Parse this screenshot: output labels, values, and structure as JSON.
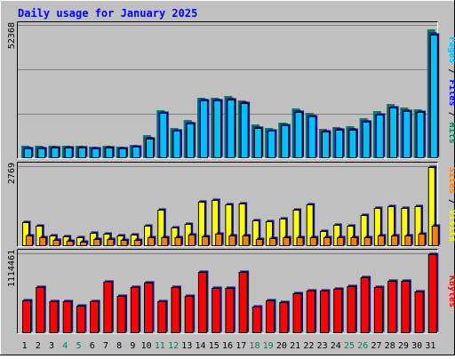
{
  "chart_data": [
    {
      "type": "bar",
      "title": "Daily usage for January 2025",
      "ylabel_parts": [
        "Pages",
        " / ",
        "Files",
        " / ",
        "Hits"
      ],
      "ymax_label": "52368",
      "ymax": 52368,
      "categories": [
        "1",
        "2",
        "3",
        "4",
        "5",
        "6",
        "7",
        "8",
        "9",
        "10",
        "11",
        "12",
        "13",
        "14",
        "15",
        "16",
        "17",
        "18",
        "19",
        "20",
        "21",
        "22",
        "23",
        "24",
        "25",
        "26",
        "27",
        "28",
        "29",
        "30",
        "31"
      ],
      "weekend_days": [
        "4",
        "5",
        "11",
        "12",
        "18",
        "19",
        "25",
        "26"
      ],
      "series": [
        {
          "name": "Hits",
          "values": [
            4800,
            4800,
            5000,
            5000,
            5000,
            4700,
            4900,
            4600,
            5400,
            9300,
            19000,
            12000,
            15000,
            24000,
            24000,
            24500,
            23000,
            13200,
            12000,
            14200,
            19600,
            17800,
            11500,
            12400,
            12600,
            15700,
            18500,
            21500,
            20000,
            19400,
            51000
          ]
        },
        {
          "name": "Files",
          "values": [
            4400,
            4400,
            4600,
            4700,
            4600,
            4300,
            4500,
            4200,
            5000,
            8500,
            18400,
            11400,
            14400,
            23400,
            23400,
            23800,
            22400,
            12600,
            11400,
            13600,
            19000,
            17200,
            11000,
            11800,
            12000,
            15000,
            17700,
            20500,
            19400,
            18800,
            50000
          ]
        },
        {
          "name": "Pages",
          "values": [
            4000,
            4000,
            4200,
            4300,
            4200,
            3900,
            4100,
            3800,
            4600,
            7800,
            17800,
            10800,
            13800,
            22800,
            22800,
            23200,
            21800,
            12000,
            10800,
            13000,
            18400,
            16600,
            10400,
            11200,
            11400,
            14400,
            17100,
            19900,
            18800,
            18200,
            49000
          ]
        }
      ],
      "colors": {
        "Hits": "#00805c",
        "Files": "#0000ff",
        "Pages": "#00c0ff",
        "grid": "#808080",
        "plot_bg": "#c0c0c0"
      }
    },
    {
      "type": "bar",
      "ylabel_parts": [
        "Sites",
        " / ",
        "Visits"
      ],
      "ymax_label": "2769",
      "ymax": 2769,
      "series": [
        {
          "name": "Visits",
          "values": [
            820,
            720,
            380,
            330,
            300,
            460,
            420,
            380,
            390,
            720,
            1250,
            660,
            760,
            1540,
            1600,
            1440,
            1470,
            880,
            860,
            940,
            1270,
            1460,
            520,
            740,
            700,
            1090,
            1320,
            1370,
            1320,
            1380,
            2740
          ]
        },
        {
          "name": "Sites",
          "values": [
            360,
            320,
            200,
            180,
            160,
            260,
            240,
            220,
            220,
            300,
            320,
            320,
            400,
            340,
            440,
            360,
            380,
            260,
            280,
            300,
            320,
            320,
            300,
            300,
            320,
            320,
            360,
            360,
            360,
            420,
            720
          ]
        }
      ],
      "colors": {
        "Visits": "#ffff00",
        "Sites": "#ff8000"
      }
    },
    {
      "type": "bar",
      "ylabel_parts": [
        "KBytes"
      ],
      "ymax_label": "1114461",
      "ymax": 1114461,
      "series": [
        {
          "name": "KBytes",
          "values": [
            460000,
            640000,
            450000,
            440000,
            380000,
            440000,
            720000,
            520000,
            640000,
            700000,
            450000,
            650000,
            520000,
            860000,
            630000,
            630000,
            860000,
            370000,
            460000,
            430000,
            560000,
            600000,
            600000,
            620000,
            660000,
            780000,
            640000,
            730000,
            730000,
            580000,
            1100000
          ]
        }
      ],
      "colors": {
        "KBytes": "#ff0000"
      }
    }
  ]
}
